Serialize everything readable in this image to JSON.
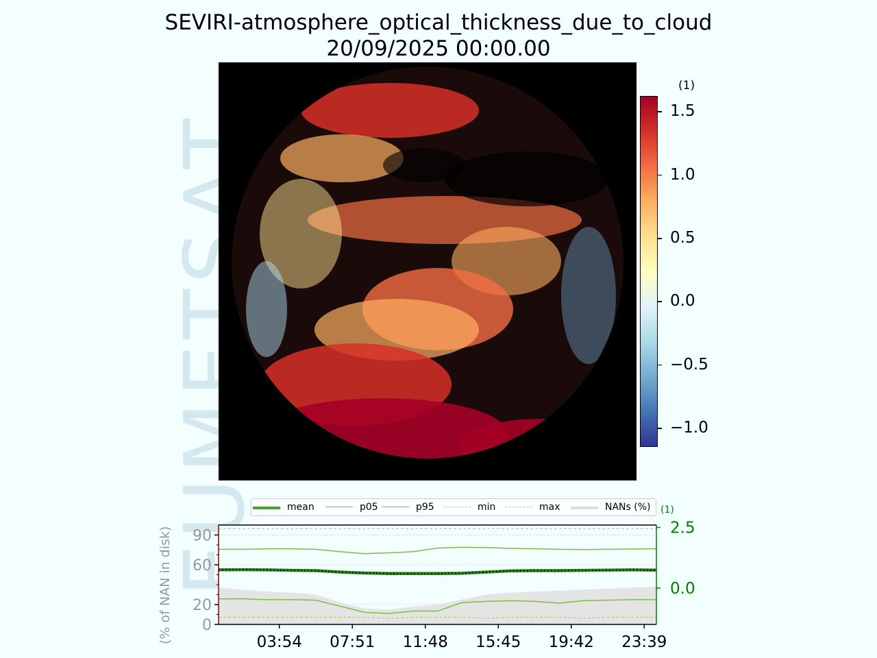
{
  "title": {
    "line1": "SEVIRI-atmosphere_optical_thickness_due_to_cloud",
    "line2": "20/09/2025 00:00.00"
  },
  "watermark": "EUMETSAT",
  "colorbar": {
    "unit": "(1)",
    "min": -1.15,
    "max": 1.62,
    "ticks": [
      1.5,
      1.0,
      0.5,
      0.0,
      -0.5,
      -1.0
    ],
    "tick_labels": [
      "1.5",
      "1.0",
      "0.5",
      "0.0",
      "−0.5",
      "−1.0"
    ],
    "colors": [
      "#a50026",
      "#d73027",
      "#f46d43",
      "#fdae61",
      "#fee090",
      "#ffffbf",
      "#e0f3f8",
      "#abd9e9",
      "#74add1",
      "#4575b4",
      "#313695"
    ]
  },
  "legend": {
    "items": [
      {
        "label": "mean",
        "color": "#3aaa2a",
        "style": "thick"
      },
      {
        "label": "p05",
        "color": "#7fbf3f",
        "style": "solid"
      },
      {
        "label": "p95",
        "color": "#7fbf3f",
        "style": "solid"
      },
      {
        "label": "min",
        "color": "#a6d96a",
        "style": "dashed"
      },
      {
        "label": "max",
        "color": "#a6d96a",
        "style": "dashed"
      },
      {
        "label": "NANs (%)",
        "color": "#dddddd",
        "style": "thick"
      }
    ]
  },
  "chart_data": {
    "type": "line",
    "x_tick_labels": [
      "03:54",
      "07:51",
      "11:48",
      "15:45",
      "19:42",
      "23:39"
    ],
    "left_axis": {
      "label": "(% of NAN in disk)",
      "ticks": [
        0,
        20,
        60,
        90
      ],
      "ylim": [
        0,
        100
      ]
    },
    "right_axis": {
      "label": "(1)",
      "ticks": [
        0.0,
        2.5
      ],
      "tick_labels": [
        "0.0",
        "2.5"
      ],
      "ylim": [
        -1.5,
        2.6
      ]
    },
    "series": [
      {
        "name": "mean",
        "values": [
          0.75,
          0.76,
          0.75,
          0.73,
          0.72,
          0.66,
          0.62,
          0.6,
          0.6,
          0.6,
          0.61,
          0.66,
          0.71,
          0.72,
          0.72,
          0.73,
          0.74,
          0.75,
          0.74
        ]
      },
      {
        "name": "p05",
        "values": [
          -0.45,
          -0.44,
          -0.48,
          -0.48,
          -0.5,
          -0.75,
          -1.0,
          -1.05,
          -0.95,
          -0.95,
          -0.6,
          -0.55,
          -0.52,
          -0.55,
          -0.62,
          -0.52,
          -0.5,
          -0.48,
          -0.48
        ]
      },
      {
        "name": "p95",
        "values": [
          1.6,
          1.6,
          1.62,
          1.62,
          1.6,
          1.5,
          1.42,
          1.45,
          1.5,
          1.65,
          1.68,
          1.67,
          1.64,
          1.62,
          1.6,
          1.59,
          1.6,
          1.61,
          1.62
        ]
      },
      {
        "name": "min",
        "values": [
          -1.2,
          -1.2,
          -1.2,
          -1.2,
          -1.2,
          -1.2,
          -1.2,
          -1.25,
          -1.2,
          -1.2,
          -1.2,
          -1.25,
          -1.2,
          -1.2,
          -1.2,
          -1.25,
          -1.2,
          -1.2,
          -1.2
        ]
      },
      {
        "name": "max",
        "values": [
          2.45,
          2.45,
          2.45,
          2.45,
          2.45,
          2.45,
          2.45,
          2.45,
          2.45,
          2.45,
          2.45,
          2.45,
          2.45,
          2.45,
          2.45,
          2.45,
          2.45,
          2.45,
          2.45
        ]
      },
      {
        "name": "NANs (%)",
        "values": [
          37,
          35,
          33,
          32,
          30,
          22,
          16,
          15,
          18,
          20,
          25,
          30,
          32,
          33,
          34,
          35,
          36,
          37,
          38
        ]
      }
    ]
  }
}
